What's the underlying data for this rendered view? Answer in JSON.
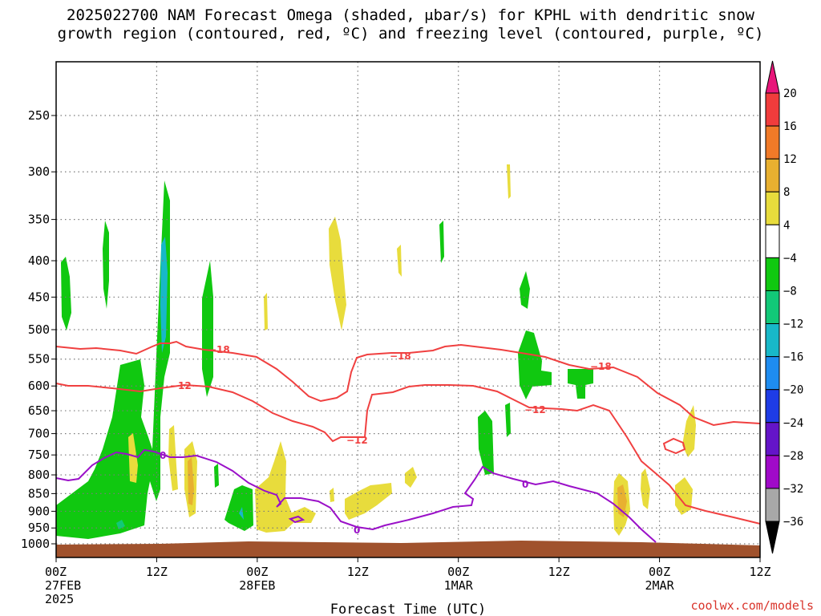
{
  "title_line1": "2025022700 NAM Forecast Omega (shaded, μbar/s) for KPHL with dendritic snow",
  "title_line2": "growth region (contoured, red, ºC) and freezing level (contoured, purple, ºC)",
  "credit": "coolwx.com/models",
  "chart_data": {
    "type": "time-height cross section",
    "xlabel": "Forecast Time (UTC)",
    "x_ticks": [
      {
        "h": 0,
        "l1": "00Z",
        "l2": "27FEB",
        "l3": "2025"
      },
      {
        "h": 12,
        "l1": "12Z",
        "l2": "",
        "l3": ""
      },
      {
        "h": 24,
        "l1": "00Z",
        "l2": "28FEB",
        "l3": ""
      },
      {
        "h": 36,
        "l1": "12Z",
        "l2": "",
        "l3": ""
      },
      {
        "h": 48,
        "l1": "00Z",
        "l2": "1MAR",
        "l3": ""
      },
      {
        "h": 60,
        "l1": "12Z",
        "l2": "",
        "l3": ""
      },
      {
        "h": 72,
        "l1": "00Z",
        "l2": "2MAR",
        "l3": ""
      },
      {
        "h": 84,
        "l1": "12Z",
        "l2": "",
        "l3": ""
      }
    ],
    "xlim_hours": [
      0,
      84
    ],
    "y_ticks_hpa": [
      250,
      300,
      350,
      400,
      450,
      500,
      550,
      600,
      650,
      700,
      750,
      800,
      850,
      900,
      950,
      1000
    ],
    "y_axis": "pressure (hPa), reversed, log scale",
    "colorbar": {
      "labels": [
        "20",
        "16",
        "12",
        "8",
        "4",
        "−4",
        "−8",
        "−12",
        "−16",
        "−20",
        "−24",
        "−28",
        "−32",
        "−36"
      ],
      "colors_top_to_bottom": [
        "#e8167a",
        "#f03c3c",
        "#f07a28",
        "#e8b030",
        "#e8dc3c",
        "#ffffff",
        "#10c810",
        "#12c878",
        "#18b8c8",
        "#1e8cf0",
        "#1e3ce6",
        "#6414c8",
        "#a00ac8",
        "#a8a8a8",
        "#000000"
      ]
    },
    "omega_regions": [
      {
        "sign": "negative",
        "magnitude": "4-8",
        "color": "#10c810",
        "t_hours": [
          0,
          16
        ],
        "p_hpa": [
          300,
          990
        ]
      },
      {
        "sign": "negative",
        "magnitude": "12-16",
        "color": "#18b8c8",
        "t_hours": [
          10.5,
          11.5
        ],
        "p_hpa": [
          380,
          530
        ]
      },
      {
        "sign": "positive",
        "magnitude": "4-8",
        "color": "#e8dc3c",
        "t_hours": [
          8,
          44
        ],
        "p_hpa": [
          360,
          960
        ]
      },
      {
        "sign": "negative",
        "magnitude": "4-8",
        "color": "#10c810",
        "t_hours": [
          49,
          61
        ],
        "p_hpa": [
          420,
          830
        ]
      },
      {
        "sign": "positive",
        "magnitude": "8-12",
        "color": "#e8b030",
        "t_hours": [
          65,
          69
        ],
        "p_hpa": [
          830,
          960
        ]
      }
    ],
    "contours": [
      {
        "name": "-18",
        "units": "ºC",
        "color": "#f04040",
        "role": "dendritic snow growth region"
      },
      {
        "name": "-12",
        "units": "ºC",
        "color": "#f04040",
        "role": "dendritic snow growth region"
      },
      {
        "name": "0",
        "units": "ºC",
        "color": "#9a10c8",
        "role": "freezing level"
      }
    ],
    "terrain_color": "#a0522d"
  }
}
